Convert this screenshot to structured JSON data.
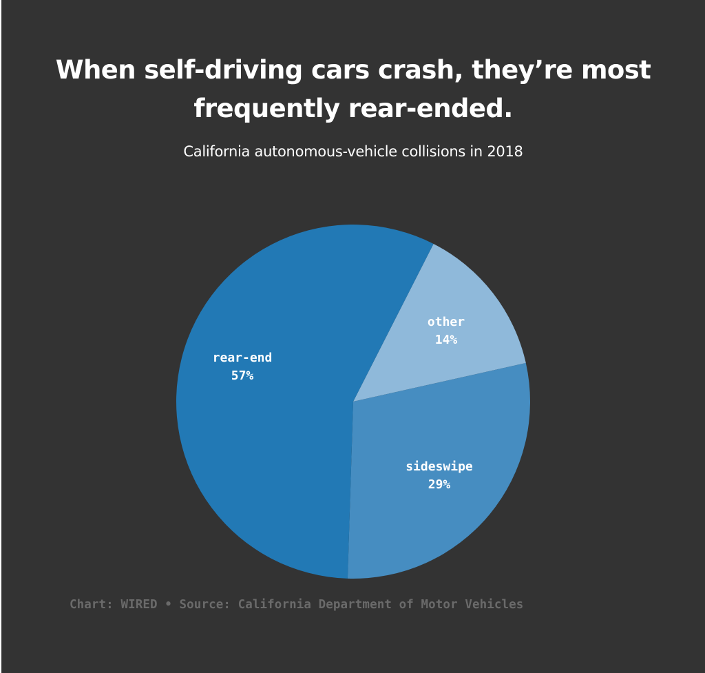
{
  "header": {
    "title_line1": "When self-driving cars crash, they’re most",
    "title_line2": "frequently rear-ended.",
    "subtitle": "California autonomous-vehicle collisions in 2018"
  },
  "footer": {
    "credit": "Chart: WIRED • Source: California Department of Motor Vehicles"
  },
  "chart_data": {
    "type": "pie",
    "title": "When self-driving cars crash, they’re most frequently rear-ended.",
    "subtitle": "California autonomous-vehicle collisions in 2018",
    "start_angle_deg": 27,
    "direction": "clockwise",
    "slices": [
      {
        "label": "other",
        "value": 14,
        "display": "14%",
        "color": "#8fb9da"
      },
      {
        "label": "sideswipe",
        "value": 29,
        "display": "29%",
        "color": "#468dc1"
      },
      {
        "label": "rear-end",
        "value": 57,
        "display": "57%",
        "color": "#2279b5"
      }
    ],
    "legend": "none",
    "source": "California Department of Motor Vehicles"
  },
  "colors": {
    "background": "#333333",
    "text": "#ffffff",
    "footer_text": "#6a6a6a"
  }
}
